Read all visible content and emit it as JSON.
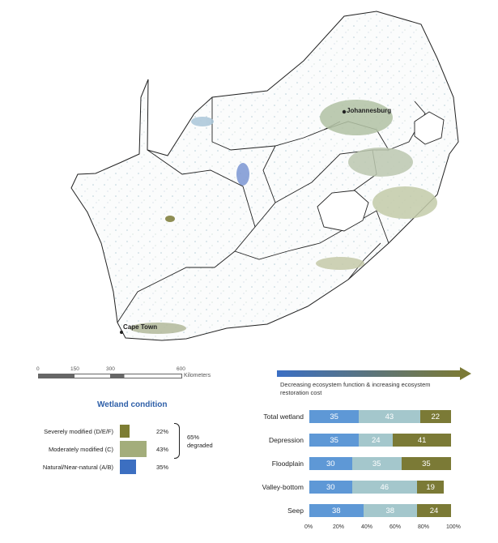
{
  "map": {
    "cities": [
      {
        "name": "Johannesburg"
      },
      {
        "name": "Cape Town"
      }
    ],
    "scale_bar": {
      "ticks": [
        "0",
        "150",
        "300",
        "600"
      ],
      "unit": "Kilometers"
    }
  },
  "legend": {
    "title": "Wetland condition",
    "categories": [
      {
        "label": "Severely modified (D/E/F)",
        "pct": "22%",
        "color": "#7d7d33"
      },
      {
        "label": "Moderately modified (C)",
        "pct": "43%",
        "color": "#a3ad7b"
      },
      {
        "label": "Natural/Near-natural (A/B)",
        "pct": "35%",
        "color": "#3c6fc1"
      }
    ],
    "bracket_text": [
      "65%",
      "degraded"
    ]
  },
  "arrow": {
    "caption": "Decreasing ecosystem function & increasing ecosystem restoration cost",
    "start_color": "#3b6fc4",
    "end_color": "#7b7a36"
  },
  "chart_data": {
    "type": "bar",
    "orientation": "horizontal",
    "stacked": true,
    "categories": [
      "Total wetland",
      "Depression",
      "Floodplain",
      "Valley-bottom",
      "Seep"
    ],
    "series": [
      {
        "name": "Natural/Near-natural (A/B)",
        "color": "#5e98d6",
        "values": [
          35,
          35,
          30,
          30,
          38
        ]
      },
      {
        "name": "Moderately modified (C)",
        "color": "#a4c7cc",
        "values": [
          43,
          24,
          35,
          46,
          38
        ]
      },
      {
        "name": "Severely modified (D/E/F)",
        "color": "#7b7a36",
        "values": [
          22,
          41,
          35,
          19,
          24
        ]
      }
    ],
    "x_ticks": [
      "0%",
      "20%",
      "40%",
      "60%",
      "80%",
      "100%"
    ],
    "xlim": [
      0,
      100
    ]
  }
}
